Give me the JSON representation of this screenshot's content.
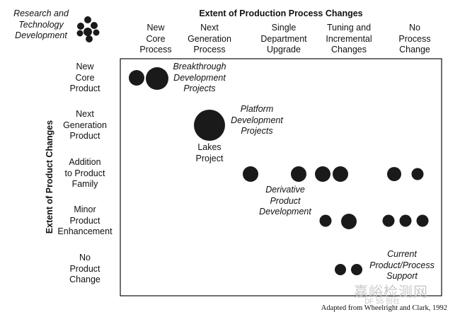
{
  "legend_label": "Research and\nTechnology\nDevelopment",
  "top_axis_title": "Extent of Production Process Changes",
  "side_axis_title": "Extent of Product Changes",
  "columns": [
    "New\nCore\nProcess",
    "Next\nGeneration\nProcess",
    "Single\nDepartment\nUpgrade",
    "Tuning and\nIncremental\nChanges",
    "No\nProcess\nChange"
  ],
  "rows": [
    "New\nCore\nProduct",
    "Next\nGeneration\nProduct",
    "Addition\nto Product\nFamily",
    "Minor\nProduct\nEnhancement",
    "No\nProduct\nChange"
  ],
  "annotations": {
    "breakthrough": "Breakthrough\nDevelopment\nProjects",
    "platform": "Platform\nDevelopment\nProjects",
    "lakes": "Lakes\nProject",
    "derivative": "Derivative\nProduct\nDevelopment",
    "support": "Current\nProduct/Process\nSupport"
  },
  "source": "Adapted from Wheelright and Clark, 1992",
  "watermark_text": "嘉峪检测网",
  "watermark_small": "DF 55 创社"
}
